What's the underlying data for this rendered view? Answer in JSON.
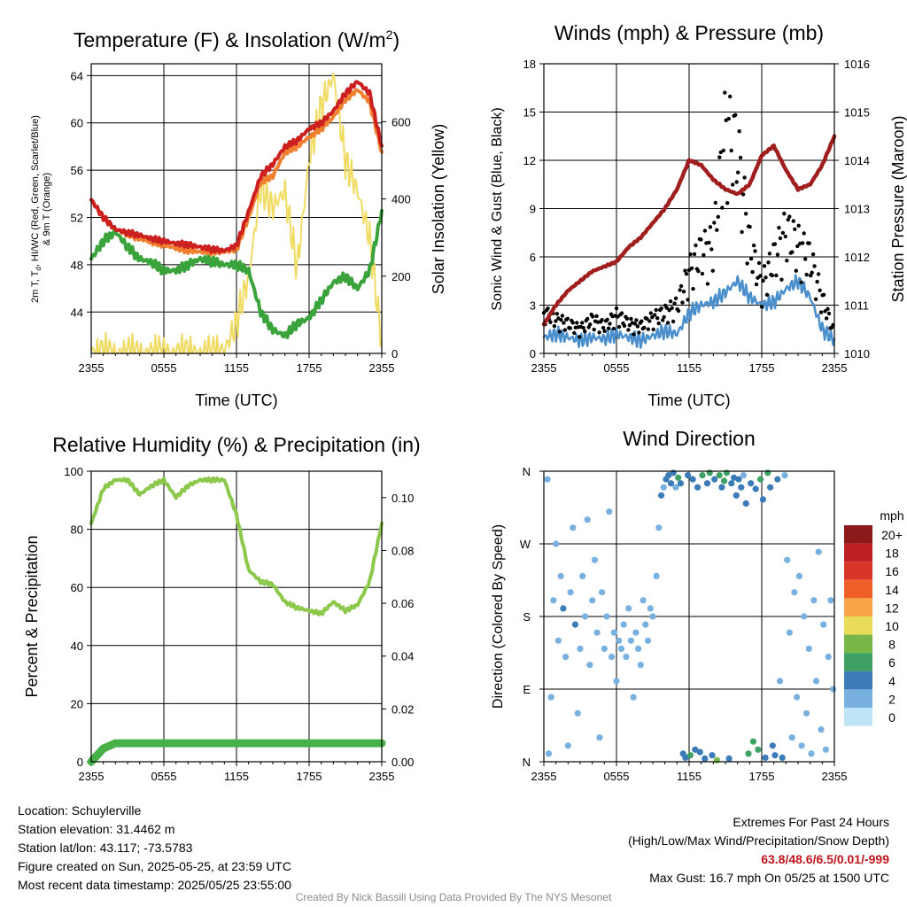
{
  "chart_data": [
    {
      "type": "line",
      "title": "Temperature (F) & Insolation (W/m2)",
      "title_main": "Temperature (F) & Insolation (W/m",
      "title_sup": "2",
      "title_end": ")",
      "xlabel": "Time (UTC)",
      "ylabel_lines": [
        "2m T, T",
        "d",
        ", HI/WC (Red, Green, Scarlet/Blue)",
        "& 9m T (Orange)"
      ],
      "ylabel2": "Solar Insolation (Yellow)",
      "x_ticks": [
        "2355",
        "0555",
        "1155",
        "1755",
        "2355"
      ],
      "y_ticks": [
        44,
        48,
        52,
        56,
        60,
        64
      ],
      "y2_ticks": [
        0,
        200,
        400,
        600
      ],
      "ylim": [
        40.5,
        65
      ],
      "y2lim": [
        0,
        750
      ],
      "grid": true,
      "x_hours": [
        0,
        1,
        2,
        3,
        4,
        5,
        6,
        7,
        8,
        9,
        10,
        11,
        12,
        13,
        14,
        15,
        16,
        17,
        18,
        19,
        20,
        21,
        22,
        23,
        24
      ],
      "series": [
        {
          "name": "2m T",
          "color": "#cc2020",
          "values": [
            53.5,
            52,
            51,
            50.7,
            50.5,
            50.2,
            50,
            49.8,
            49.7,
            49.5,
            49.3,
            49.2,
            49.6,
            52.5,
            55.5,
            56.5,
            58,
            58.5,
            59.5,
            60,
            61,
            62.5,
            63.5,
            62.5,
            58
          ]
        },
        {
          "name": "9m T",
          "color": "#f08030",
          "values": [
            53.5,
            52,
            51,
            50.6,
            50.2,
            49.9,
            49.7,
            49.4,
            49.2,
            49.1,
            49.1,
            49.1,
            49.3,
            52,
            55,
            55.5,
            57.5,
            58,
            58.8,
            59.5,
            60.5,
            62,
            62.8,
            61.8,
            57.5
          ]
        },
        {
          "name": "Td",
          "color": "#3ba33b",
          "values": [
            48.5,
            50,
            50.8,
            49.5,
            48.5,
            48.2,
            47.5,
            47.5,
            48,
            48.5,
            48.3,
            48,
            48,
            47.5,
            44,
            42.5,
            42,
            43,
            43.5,
            45,
            46.5,
            47,
            46,
            47.5,
            52.5
          ]
        },
        {
          "name": "Solar Insolation",
          "color": "#f0dc64",
          "values": [
            5,
            3,
            2,
            2,
            2,
            2,
            2,
            2,
            2,
            2,
            2,
            8,
            80,
            200,
            430,
            380,
            420,
            220,
            500,
            640,
            720,
            500,
            420,
            300,
            25
          ]
        }
      ]
    },
    {
      "type": "line",
      "title": "Winds (mph) & Pressure (mb)",
      "xlabel": "Time (UTC)",
      "ylabel": "Sonic Wind & Gust (Blue, Black)",
      "ylabel2": "Station Pressure (Maroon)",
      "x_ticks": [
        "2355",
        "0555",
        "1155",
        "1755",
        "2355"
      ],
      "y_ticks": [
        0,
        3,
        6,
        9,
        12,
        15,
        18
      ],
      "y2_ticks": [
        1010,
        1011,
        1012,
        1013,
        1014,
        1015,
        1016
      ],
      "ylim": [
        0,
        18
      ],
      "y2lim": [
        1010,
        1016
      ],
      "grid": true,
      "x_hours": [
        0,
        1,
        2,
        3,
        4,
        5,
        6,
        7,
        8,
        9,
        10,
        11,
        12,
        13,
        14,
        15,
        16,
        17,
        18,
        19,
        20,
        21,
        22,
        23,
        24
      ],
      "series": [
        {
          "name": "Sonic Wind",
          "color": "#4a8fcc",
          "values": [
            1,
            1.2,
            1,
            0.8,
            1,
            0.9,
            1.2,
            1,
            0.8,
            1.1,
            1.4,
            1.2,
            2.5,
            3,
            3.2,
            3.8,
            4.5,
            3.5,
            3,
            3.2,
            4,
            4.5,
            3.5,
            1.5,
            0.8
          ]
        },
        {
          "name": "Gust",
          "color": "#000000",
          "values": [
            3,
            2.5,
            2.2,
            1.8,
            2.5,
            2,
            2.8,
            2.2,
            2,
            2.6,
            3,
            3.5,
            6,
            7.5,
            8,
            16.7,
            15,
            8,
            5,
            7,
            9,
            8,
            7,
            4,
            1.5
          ]
        },
        {
          "name": "Station Pressure",
          "color": "#a01e1e",
          "values": [
            1010.6,
            1011,
            1011.3,
            1011.5,
            1011.7,
            1011.8,
            1011.9,
            1012.2,
            1012.4,
            1012.7,
            1013,
            1013.4,
            1014,
            1013.9,
            1013.6,
            1013.4,
            1013.3,
            1013.5,
            1014.1,
            1014.3,
            1013.8,
            1013.4,
            1013.5,
            1013.9,
            1014.5
          ]
        }
      ]
    },
    {
      "type": "line",
      "title": "Relative Humidity (%) & Precipitation (in)",
      "ylabel": "Percent & Precipitation",
      "x_ticks": [
        "2355",
        "0555",
        "1155",
        "1755",
        "2355"
      ],
      "y_ticks": [
        0,
        20,
        40,
        60,
        80,
        100
      ],
      "y2_ticks": [
        "0.00",
        "0.02",
        "0.04",
        "0.06",
        "0.08",
        "0.10"
      ],
      "ylim": [
        0,
        100
      ],
      "y2lim": [
        0,
        0.11
      ],
      "grid": true,
      "x_hours": [
        0,
        1,
        2,
        3,
        4,
        5,
        6,
        7,
        8,
        9,
        10,
        11,
        12,
        13,
        14,
        15,
        16,
        17,
        18,
        19,
        20,
        21,
        22,
        23,
        24
      ],
      "series": [
        {
          "name": "Relative Humidity",
          "color": "#8cc84b",
          "values": [
            82,
            94,
            97,
            97,
            92,
            95,
            97,
            91,
            95,
            97,
            97,
            97,
            85,
            66,
            62,
            61,
            55,
            53,
            52,
            51,
            55,
            52,
            54,
            62,
            82
          ]
        },
        {
          "name": "Precipitation",
          "color": "#48b048",
          "values": [
            0,
            0.005,
            0.007,
            0.007,
            0.007,
            0.007,
            0.007,
            0.007,
            0.007,
            0.007,
            0.007,
            0.007,
            0.007,
            0.007,
            0.007,
            0.007,
            0.007,
            0.007,
            0.007,
            0.007,
            0.007,
            0.007,
            0.007,
            0.007,
            0.007
          ]
        }
      ]
    },
    {
      "type": "scatter",
      "title": "Wind Direction",
      "ylabel": "Direction (Colored By Speed)",
      "x_ticks": [
        "2355",
        "0555",
        "1155",
        "1755",
        "2355"
      ],
      "y_ticks": [
        "N",
        "E",
        "S",
        "W",
        "N"
      ],
      "ylim": [
        0,
        360
      ],
      "grid": true,
      "colorbar_title": "mph",
      "colorbar_labels": [
        "20+",
        "18",
        "16",
        "14",
        "12",
        "10",
        "8",
        "6",
        "4",
        "2",
        "0"
      ],
      "colorbar_colors": [
        "#8c1a1a",
        "#bf2026",
        "#d63527",
        "#ee6027",
        "#f8a448",
        "#e8dc58",
        "#78b848",
        "#3ea062",
        "#3a7bb8",
        "#78b0e0",
        "#bfe3f7"
      ],
      "points": [
        {
          "hour": 0.3,
          "deg": 350,
          "mph": 2
        },
        {
          "hour": 0.4,
          "deg": 10,
          "mph": 1
        },
        {
          "hour": 0.6,
          "deg": 80,
          "mph": 1
        },
        {
          "hour": 0.8,
          "deg": 200,
          "mph": 1
        },
        {
          "hour": 1,
          "deg": 270,
          "mph": 1
        },
        {
          "hour": 1.2,
          "deg": 150,
          "mph": 2
        },
        {
          "hour": 1.4,
          "deg": 230,
          "mph": 1
        },
        {
          "hour": 1.6,
          "deg": 190,
          "mph": 3
        },
        {
          "hour": 1.8,
          "deg": 130,
          "mph": 1
        },
        {
          "hour": 2,
          "deg": 20,
          "mph": 1
        },
        {
          "hour": 2.2,
          "deg": 210,
          "mph": 2
        },
        {
          "hour": 2.4,
          "deg": 290,
          "mph": 1
        },
        {
          "hour": 2.6,
          "deg": 170,
          "mph": 3
        },
        {
          "hour": 2.8,
          "deg": 60,
          "mph": 1
        },
        {
          "hour": 3,
          "deg": 140,
          "mph": 1
        },
        {
          "hour": 3.2,
          "deg": 230,
          "mph": 2
        },
        {
          "hour": 3.4,
          "deg": 180,
          "mph": 1
        },
        {
          "hour": 3.6,
          "deg": 300,
          "mph": 1
        },
        {
          "hour": 3.8,
          "deg": 120,
          "mph": 2
        },
        {
          "hour": 4,
          "deg": 200,
          "mph": 1
        },
        {
          "hour": 4.2,
          "deg": 250,
          "mph": 1
        },
        {
          "hour": 4.4,
          "deg": 160,
          "mph": 1
        },
        {
          "hour": 4.6,
          "deg": 30,
          "mph": 1
        },
        {
          "hour": 4.8,
          "deg": 210,
          "mph": 2
        },
        {
          "hour": 5,
          "deg": 140,
          "mph": 1
        },
        {
          "hour": 5.2,
          "deg": 180,
          "mph": 1
        },
        {
          "hour": 5.4,
          "deg": 310,
          "mph": 1
        },
        {
          "hour": 5.6,
          "deg": 130,
          "mph": 1
        },
        {
          "hour": 5.8,
          "deg": 160,
          "mph": 2
        },
        {
          "hour": 6,
          "deg": 100,
          "mph": 1
        },
        {
          "hour": 6.2,
          "deg": 150,
          "mph": 1
        },
        {
          "hour": 6.4,
          "deg": 140,
          "mph": 1
        },
        {
          "hour": 6.6,
          "deg": 170,
          "mph": 1
        },
        {
          "hour": 6.8,
          "deg": 130,
          "mph": 2
        },
        {
          "hour": 7,
          "deg": 190,
          "mph": 1
        },
        {
          "hour": 7.2,
          "deg": 150,
          "mph": 1
        },
        {
          "hour": 7.4,
          "deg": 80,
          "mph": 1
        },
        {
          "hour": 7.6,
          "deg": 160,
          "mph": 1
        },
        {
          "hour": 7.8,
          "deg": 140,
          "mph": 1
        },
        {
          "hour": 8,
          "deg": 120,
          "mph": 1
        },
        {
          "hour": 8.2,
          "deg": 200,
          "mph": 1
        },
        {
          "hour": 8.4,
          "deg": 170,
          "mph": 1
        },
        {
          "hour": 8.6,
          "deg": 150,
          "mph": 1
        },
        {
          "hour": 8.8,
          "deg": 190,
          "mph": 1
        },
        {
          "hour": 9,
          "deg": 180,
          "mph": 1
        },
        {
          "hour": 9.3,
          "deg": 230,
          "mph": 1
        },
        {
          "hour": 9.5,
          "deg": 290,
          "mph": 2
        },
        {
          "hour": 9.7,
          "deg": 330,
          "mph": 3
        },
        {
          "hour": 9.9,
          "deg": 340,
          "mph": 2
        },
        {
          "hour": 10.1,
          "deg": 350,
          "mph": 3
        },
        {
          "hour": 10.3,
          "deg": 355,
          "mph": 4
        },
        {
          "hour": 10.5,
          "deg": 345,
          "mph": 3
        },
        {
          "hour": 10.7,
          "deg": 358,
          "mph": 4
        },
        {
          "hour": 10.9,
          "deg": 340,
          "mph": 2
        },
        {
          "hour": 11.1,
          "deg": 352,
          "mph": 5
        },
        {
          "hour": 11.3,
          "deg": 345,
          "mph": 3
        },
        {
          "hour": 11.5,
          "deg": 10,
          "mph": 4
        },
        {
          "hour": 11.7,
          "deg": 5,
          "mph": 4
        },
        {
          "hour": 11.9,
          "deg": 355,
          "mph": 3
        },
        {
          "hour": 12.1,
          "deg": 8,
          "mph": 5
        },
        {
          "hour": 12.3,
          "deg": 350,
          "mph": 4
        },
        {
          "hour": 12.5,
          "deg": 15,
          "mph": 3
        },
        {
          "hour": 12.7,
          "deg": 340,
          "mph": 4
        },
        {
          "hour": 12.9,
          "deg": 12,
          "mph": 4
        },
        {
          "hour": 13.1,
          "deg": 355,
          "mph": 5
        },
        {
          "hour": 13.3,
          "deg": 4,
          "mph": 4
        },
        {
          "hour": 13.5,
          "deg": 345,
          "mph": 3
        },
        {
          "hour": 13.7,
          "deg": 358,
          "mph": 6
        },
        {
          "hour": 13.9,
          "deg": 8,
          "mph": 4
        },
        {
          "hour": 14.1,
          "deg": 350,
          "mph": 4
        },
        {
          "hour": 14.3,
          "deg": 2,
          "mph": 7
        },
        {
          "hour": 14.5,
          "deg": 355,
          "mph": 5
        },
        {
          "hour": 14.7,
          "deg": 340,
          "mph": 4
        },
        {
          "hour": 14.9,
          "deg": 348,
          "mph": 6
        },
        {
          "hour": 15.1,
          "deg": 358,
          "mph": 5
        },
        {
          "hour": 15.3,
          "deg": 4,
          "mph": 4
        },
        {
          "hour": 15.5,
          "deg": 345,
          "mph": 4
        },
        {
          "hour": 15.7,
          "deg": 352,
          "mph": 3
        },
        {
          "hour": 15.9,
          "deg": 330,
          "mph": 3
        },
        {
          "hour": 16.1,
          "deg": 350,
          "mph": 4
        },
        {
          "hour": 16.3,
          "deg": 340,
          "mph": 3
        },
        {
          "hour": 16.5,
          "deg": 355,
          "mph": 2
        },
        {
          "hour": 16.7,
          "deg": 320,
          "mph": 4
        },
        {
          "hour": 16.9,
          "deg": 10,
          "mph": 5
        },
        {
          "hour": 17.1,
          "deg": 345,
          "mph": 4
        },
        {
          "hour": 17.3,
          "deg": 25,
          "mph": 5
        },
        {
          "hour": 17.5,
          "deg": 338,
          "mph": 3
        },
        {
          "hour": 17.7,
          "deg": 15,
          "mph": 5
        },
        {
          "hour": 17.9,
          "deg": 350,
          "mph": 5
        },
        {
          "hour": 18.1,
          "deg": 325,
          "mph": 4
        },
        {
          "hour": 18.3,
          "deg": 5,
          "mph": 4
        },
        {
          "hour": 18.5,
          "deg": 358,
          "mph": 6
        },
        {
          "hour": 18.7,
          "deg": 340,
          "mph": 3
        },
        {
          "hour": 18.9,
          "deg": 20,
          "mph": 3
        },
        {
          "hour": 19.1,
          "deg": 8,
          "mph": 4
        },
        {
          "hour": 19.3,
          "deg": 350,
          "mph": 4
        },
        {
          "hour": 19.5,
          "deg": 100,
          "mph": 2
        },
        {
          "hour": 19.7,
          "deg": 5,
          "mph": 3
        },
        {
          "hour": 19.9,
          "deg": 355,
          "mph": 2
        },
        {
          "hour": 20.1,
          "deg": 250,
          "mph": 1
        },
        {
          "hour": 20.3,
          "deg": 160,
          "mph": 1
        },
        {
          "hour": 20.5,
          "deg": 30,
          "mph": 2
        },
        {
          "hour": 20.7,
          "deg": 210,
          "mph": 1
        },
        {
          "hour": 20.9,
          "deg": 80,
          "mph": 1
        },
        {
          "hour": 21.1,
          "deg": 230,
          "mph": 1
        },
        {
          "hour": 21.3,
          "deg": 20,
          "mph": 1
        },
        {
          "hour": 21.5,
          "deg": 180,
          "mph": 1
        },
        {
          "hour": 21.7,
          "deg": 60,
          "mph": 1
        },
        {
          "hour": 21.9,
          "deg": 140,
          "mph": 1
        },
        {
          "hour": 22.1,
          "deg": 10,
          "mph": 1
        },
        {
          "hour": 22.3,
          "deg": 200,
          "mph": 1
        },
        {
          "hour": 22.5,
          "deg": 100,
          "mph": 1
        },
        {
          "hour": 22.7,
          "deg": 260,
          "mph": 1
        },
        {
          "hour": 22.9,
          "deg": 40,
          "mph": 1
        },
        {
          "hour": 23.1,
          "deg": 170,
          "mph": 1
        },
        {
          "hour": 23.3,
          "deg": 15,
          "mph": 1
        },
        {
          "hour": 23.5,
          "deg": 130,
          "mph": 1
        },
        {
          "hour": 23.7,
          "deg": 200,
          "mph": 1
        },
        {
          "hour": 23.9,
          "deg": 90,
          "mph": 1
        }
      ]
    }
  ],
  "info": {
    "location": "Location: Schuylerville",
    "elevation": "Station elevation: 31.4462 m",
    "latlon": "Station lat/lon: 43.117; -73.5783",
    "created": "Figure created on Sun, 2025-05-25, at 23:59 UTC",
    "recent": "Most recent data timestamp: 2025/05/25 23:55:00",
    "extremes_title": "Extremes For Past 24 Hours",
    "extremes_fields": "(High/Low/Max Wind/Precipitation/Snow Depth)",
    "extremes_values": "63.8/48.6/6.5/0.01/-999",
    "max_gust": "Max Gust: 16.7 mph On 05/25 at 1500 UTC",
    "credit": "Created By Nick Bassill Using Data Provided By The NYS Mesonet"
  }
}
